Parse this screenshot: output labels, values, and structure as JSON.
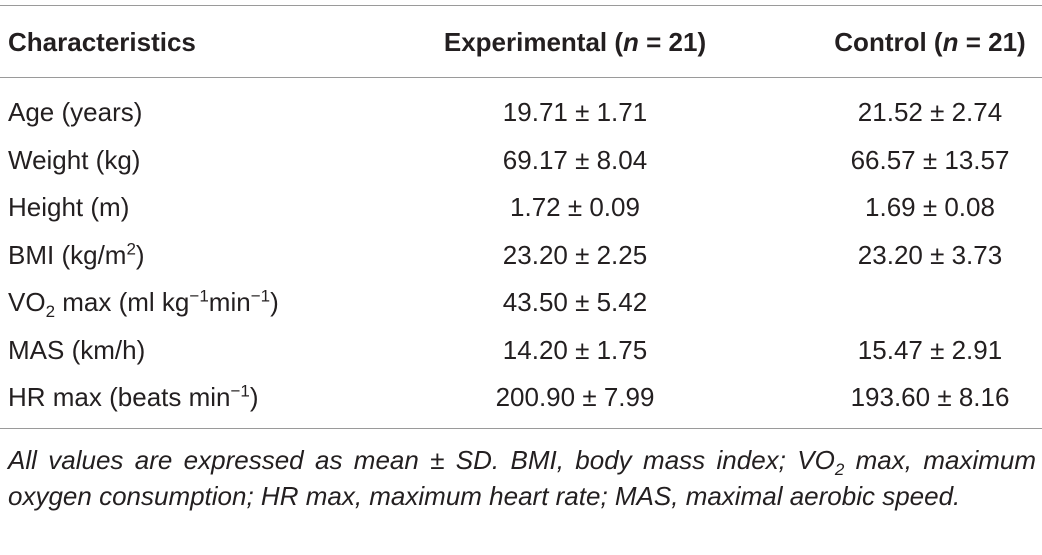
{
  "table": {
    "header": [
      [
        "Characteristics"
      ],
      [
        "Experimental (",
        {
          "i": "n"
        },
        " = 21)"
      ],
      [
        "Control (",
        {
          "i": "n"
        },
        " = 21)"
      ]
    ],
    "rows": [
      [
        [
          "Age (years)"
        ],
        "19.71 ± 1.71",
        "21.52 ± 2.74"
      ],
      [
        [
          "Weight (kg)"
        ],
        "69.17 ± 8.04",
        "66.57 ± 13.57"
      ],
      [
        [
          "Height (m)"
        ],
        "1.72 ± 0.09",
        "1.69 ± 0.08"
      ],
      [
        [
          "BMI (kg/m",
          {
            "sup": "2"
          },
          ")"
        ],
        "23.20 ± 2.25",
        "23.20 ± 3.73"
      ],
      [
        [
          "VO",
          {
            "sub": "2"
          },
          " max (ml kg",
          {
            "sup": "−1"
          },
          "min",
          {
            "sup": "−1"
          },
          ")"
        ],
        "43.50 ± 5.42",
        null
      ],
      [
        [
          "MAS (km/h)"
        ],
        "14.20 ± 1.75",
        "15.47 ± 2.91"
      ],
      [
        [
          "HR max (beats min",
          {
            "sup": "−1"
          },
          ")"
        ],
        "200.90 ± 7.99",
        "193.60 ± 8.16"
      ]
    ],
    "footnote": [
      "All values are expressed as mean ± SD. BMI, body mass index; VO",
      {
        "sub": "2"
      },
      " max, maximum oxygen consumption; HR max, maximum heart rate; MAS, maximal aerobic speed."
    ]
  }
}
